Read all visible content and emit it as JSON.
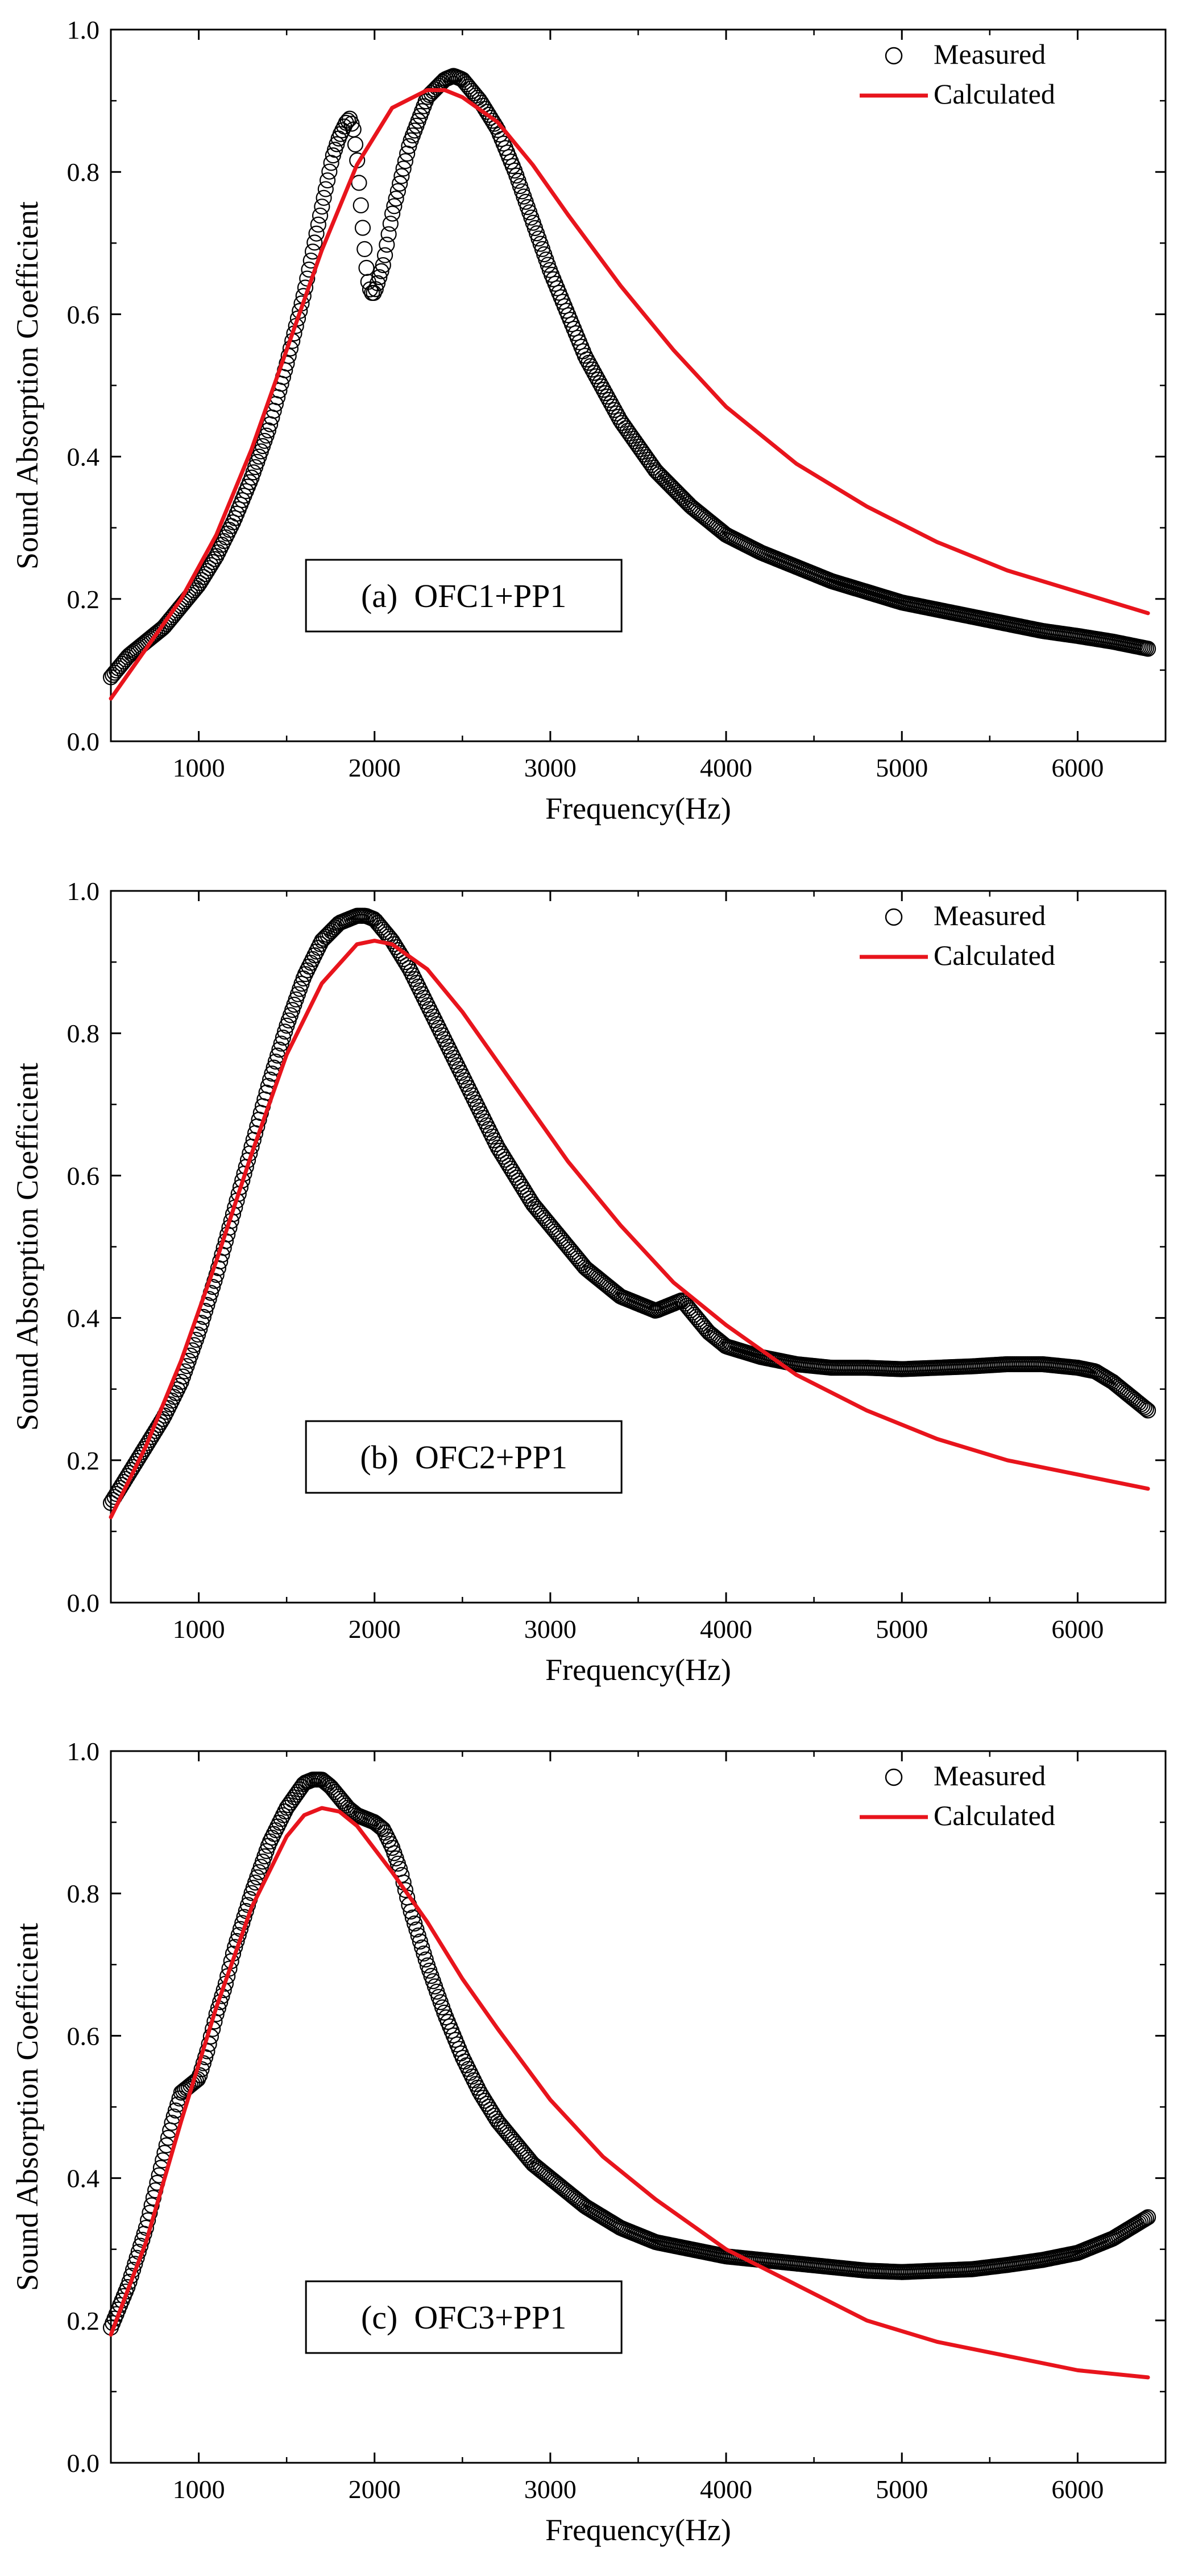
{
  "colors": {
    "measured_marker": "#000000",
    "calculated_line": "#e8141c",
    "axis": "#000000",
    "background": "#ffffff"
  },
  "chart_data": [
    {
      "type": "line",
      "panel_label": "(a)  OFC1+PP1",
      "xlabel": "Frequency(Hz)",
      "ylabel": "Sound Absorption Coefficient",
      "xlim": [
        500,
        6500
      ],
      "ylim": [
        0.0,
        1.0
      ],
      "x_ticks": [
        1000,
        2000,
        3000,
        4000,
        5000,
        6000
      ],
      "y_ticks": [
        "0.0",
        "0.2",
        "0.4",
        "0.6",
        "0.8",
        "1.0"
      ],
      "legend": {
        "position": "top-right",
        "entries": [
          "Measured",
          "Calculated"
        ]
      },
      "series": [
        {
          "name": "Measured",
          "style": "open-circle",
          "x": [
            500,
            600,
            700,
            800,
            900,
            1000,
            1100,
            1200,
            1300,
            1400,
            1500,
            1600,
            1700,
            1760,
            1800,
            1840,
            1860,
            1880,
            1900,
            1920,
            1940,
            1960,
            1980,
            2000,
            2050,
            2100,
            2200,
            2300,
            2400,
            2450,
            2500,
            2600,
            2700,
            2800,
            2900,
            3000,
            3200,
            3400,
            3600,
            3800,
            4000,
            4200,
            4400,
            4600,
            4800,
            5000,
            5200,
            5400,
            5600,
            5800,
            6000,
            6200,
            6400
          ],
          "y": [
            0.09,
            0.12,
            0.14,
            0.16,
            0.19,
            0.22,
            0.26,
            0.31,
            0.37,
            0.44,
            0.53,
            0.63,
            0.75,
            0.82,
            0.85,
            0.87,
            0.875,
            0.86,
            0.82,
            0.76,
            0.7,
            0.65,
            0.63,
            0.63,
            0.67,
            0.74,
            0.84,
            0.905,
            0.93,
            0.935,
            0.93,
            0.9,
            0.86,
            0.8,
            0.73,
            0.66,
            0.54,
            0.45,
            0.38,
            0.33,
            0.29,
            0.265,
            0.245,
            0.225,
            0.21,
            0.195,
            0.185,
            0.175,
            0.165,
            0.155,
            0.148,
            0.14,
            0.13
          ]
        },
        {
          "name": "Calculated",
          "style": "line",
          "x": [
            500,
            700,
            900,
            1100,
            1300,
            1500,
            1700,
            1900,
            2100,
            2300,
            2400,
            2500,
            2700,
            2900,
            3100,
            3400,
            3700,
            4000,
            4400,
            4800,
            5200,
            5600,
            6000,
            6400
          ],
          "y": [
            0.06,
            0.13,
            0.2,
            0.29,
            0.41,
            0.55,
            0.69,
            0.81,
            0.89,
            0.915,
            0.915,
            0.905,
            0.87,
            0.81,
            0.74,
            0.64,
            0.55,
            0.47,
            0.39,
            0.33,
            0.28,
            0.24,
            0.21,
            0.18
          ]
        }
      ]
    },
    {
      "type": "line",
      "panel_label": "(b)  OFC2+PP1",
      "xlabel": "Frequency(Hz)",
      "ylabel": "Sound Absorption Coefficient",
      "xlim": [
        500,
        6500
      ],
      "ylim": [
        0.0,
        1.0
      ],
      "x_ticks": [
        1000,
        2000,
        3000,
        4000,
        5000,
        6000
      ],
      "y_ticks": [
        "0.0",
        "0.2",
        "0.4",
        "0.6",
        "0.8",
        "1.0"
      ],
      "legend": {
        "position": "top-right",
        "entries": [
          "Measured",
          "Calculated"
        ]
      },
      "series": [
        {
          "name": "Measured",
          "style": "open-circle",
          "x": [
            500,
            600,
            700,
            800,
            900,
            1000,
            1100,
            1200,
            1300,
            1400,
            1500,
            1600,
            1700,
            1800,
            1900,
            1950,
            2000,
            2100,
            2200,
            2300,
            2400,
            2500,
            2600,
            2700,
            2800,
            2900,
            3000,
            3100,
            3200,
            3300,
            3400,
            3500,
            3600,
            3700,
            3750,
            3800,
            3900,
            4000,
            4200,
            4400,
            4600,
            4800,
            5000,
            5200,
            5400,
            5600,
            5800,
            6000,
            6100,
            6200,
            6300,
            6400
          ],
          "y": [
            0.14,
            0.18,
            0.22,
            0.26,
            0.31,
            0.38,
            0.46,
            0.55,
            0.64,
            0.73,
            0.81,
            0.88,
            0.93,
            0.955,
            0.965,
            0.965,
            0.96,
            0.93,
            0.89,
            0.84,
            0.79,
            0.74,
            0.69,
            0.64,
            0.6,
            0.56,
            0.53,
            0.5,
            0.47,
            0.45,
            0.43,
            0.42,
            0.41,
            0.42,
            0.425,
            0.41,
            0.38,
            0.36,
            0.345,
            0.335,
            0.33,
            0.33,
            0.328,
            0.33,
            0.332,
            0.335,
            0.335,
            0.33,
            0.325,
            0.31,
            0.29,
            0.27
          ]
        },
        {
          "name": "Calculated",
          "style": "line",
          "x": [
            500,
            700,
            900,
            1100,
            1300,
            1500,
            1700,
            1900,
            2000,
            2100,
            2300,
            2500,
            2700,
            2900,
            3100,
            3400,
            3700,
            4000,
            4400,
            4800,
            5200,
            5600,
            6000,
            6400
          ],
          "y": [
            0.12,
            0.22,
            0.34,
            0.48,
            0.63,
            0.77,
            0.87,
            0.925,
            0.93,
            0.925,
            0.89,
            0.83,
            0.76,
            0.69,
            0.62,
            0.53,
            0.45,
            0.39,
            0.32,
            0.27,
            0.23,
            0.2,
            0.18,
            0.16
          ]
        }
      ]
    },
    {
      "type": "line",
      "panel_label": "(c)  OFC3+PP1",
      "xlabel": "Frequency(Hz)",
      "ylabel": "Sound Absorption Coefficient",
      "xlim": [
        500,
        6500
      ],
      "ylim": [
        0.0,
        1.0
      ],
      "x_ticks": [
        1000,
        2000,
        3000,
        4000,
        5000,
        6000
      ],
      "y_ticks": [
        "0.0",
        "0.2",
        "0.4",
        "0.6",
        "0.8",
        "1.0"
      ],
      "legend": {
        "position": "top-right",
        "entries": [
          "Measured",
          "Calculated"
        ]
      },
      "series": [
        {
          "name": "Measured",
          "style": "open-circle",
          "x": [
            500,
            550,
            600,
            650,
            700,
            750,
            800,
            850,
            900,
            950,
            1000,
            1050,
            1100,
            1150,
            1200,
            1300,
            1400,
            1500,
            1600,
            1650,
            1700,
            1750,
            1800,
            1850,
            1900,
            1950,
            2000,
            2050,
            2100,
            2150,
            2200,
            2300,
            2400,
            2500,
            2600,
            2700,
            2800,
            2900,
            3000,
            3200,
            3400,
            3600,
            3800,
            4000,
            4200,
            4400,
            4600,
            4800,
            5000,
            5200,
            5400,
            5600,
            5800,
            6000,
            6200,
            6400
          ],
          "y": [
            0.19,
            0.22,
            0.25,
            0.29,
            0.33,
            0.38,
            0.43,
            0.48,
            0.52,
            0.53,
            0.54,
            0.58,
            0.63,
            0.67,
            0.72,
            0.8,
            0.87,
            0.92,
            0.955,
            0.96,
            0.96,
            0.95,
            0.935,
            0.92,
            0.91,
            0.905,
            0.9,
            0.89,
            0.865,
            0.83,
            0.78,
            0.7,
            0.63,
            0.57,
            0.52,
            0.48,
            0.45,
            0.42,
            0.4,
            0.36,
            0.33,
            0.31,
            0.3,
            0.29,
            0.285,
            0.28,
            0.275,
            0.27,
            0.268,
            0.27,
            0.272,
            0.278,
            0.285,
            0.295,
            0.315,
            0.345
          ]
        },
        {
          "name": "Calculated",
          "style": "line",
          "x": [
            500,
            700,
            900,
            1100,
            1300,
            1500,
            1600,
            1700,
            1800,
            1900,
            2100,
            2300,
            2500,
            2700,
            3000,
            3300,
            3600,
            4000,
            4400,
            4800,
            5200,
            5600,
            6000,
            6400
          ],
          "y": [
            0.18,
            0.31,
            0.48,
            0.64,
            0.78,
            0.88,
            0.91,
            0.92,
            0.915,
            0.895,
            0.83,
            0.76,
            0.68,
            0.61,
            0.51,
            0.43,
            0.37,
            0.3,
            0.25,
            0.2,
            0.17,
            0.15,
            0.13,
            0.12
          ]
        }
      ]
    }
  ]
}
